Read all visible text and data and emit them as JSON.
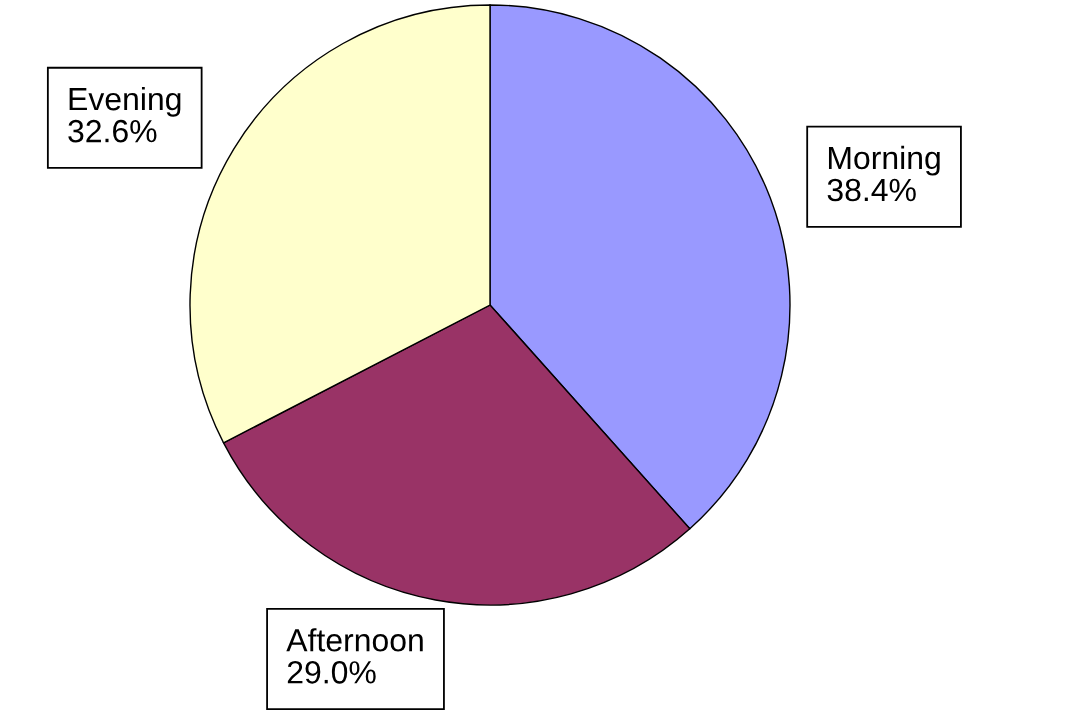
{
  "chart_data": {
    "type": "pie",
    "categories": [
      "Morning",
      "Afternoon",
      "Evening"
    ],
    "values": [
      38.4,
      29.0,
      32.6
    ],
    "colors": [
      "#9999ff",
      "#993366",
      "#ffffcc"
    ],
    "value_labels": [
      "38.4%",
      "29.0%",
      "32.6%"
    ]
  }
}
